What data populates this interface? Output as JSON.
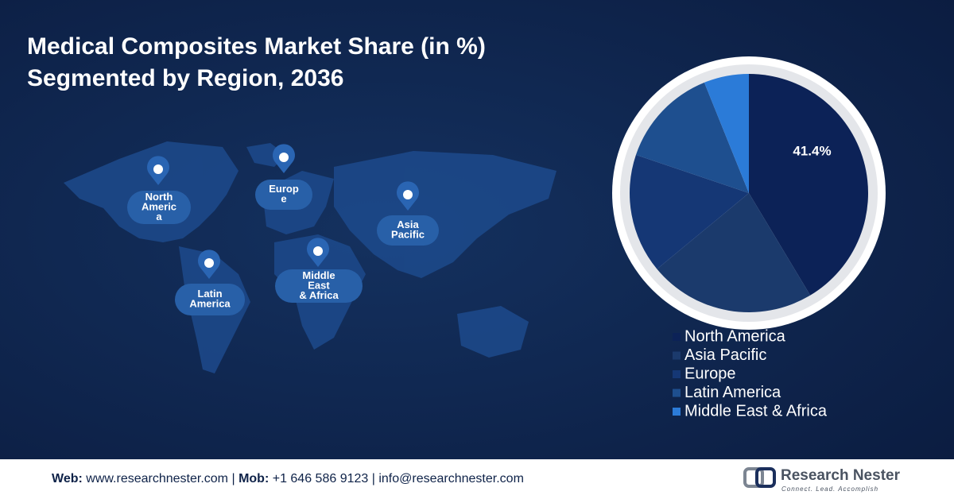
{
  "chart_data": {
    "type": "pie",
    "title_lines": [
      "Medical Composites Market Share (in %)",
      "Segmented by Region, 2036"
    ],
    "categories": [
      "North America",
      "Asia Pacific",
      "Europe",
      "Latin America",
      "Middle East & Africa"
    ],
    "values": [
      41.4,
      22.6,
      16.2,
      13.7,
      6.1
    ],
    "value_labels": [
      "41.4%",
      null,
      null,
      null,
      null
    ],
    "colors": [
      "#0c2257",
      "#1b3a6c",
      "#153775",
      "#1e4f8f",
      "#2b7bd8"
    ],
    "map_pins": [
      {
        "lines": [
          "North",
          "Americ",
          "a"
        ]
      },
      {
        "lines": [
          "Europ",
          "e"
        ]
      },
      {
        "lines": [
          "Asia",
          "Pacific"
        ]
      },
      {
        "lines": [
          "Latin",
          "America"
        ]
      },
      {
        "lines": [
          "Middle",
          "East",
          "& Africa"
        ]
      }
    ]
  },
  "footer": {
    "web_label": "Web:",
    "web": "www.researchnester.com",
    "separator": "|",
    "mob_label": "Mob:",
    "mob": "+1 646 586 9123",
    "email": "info@researchnester.com"
  },
  "logo": {
    "name": "Research Nester",
    "tagline": "Connect. Lead. Accomplish"
  }
}
